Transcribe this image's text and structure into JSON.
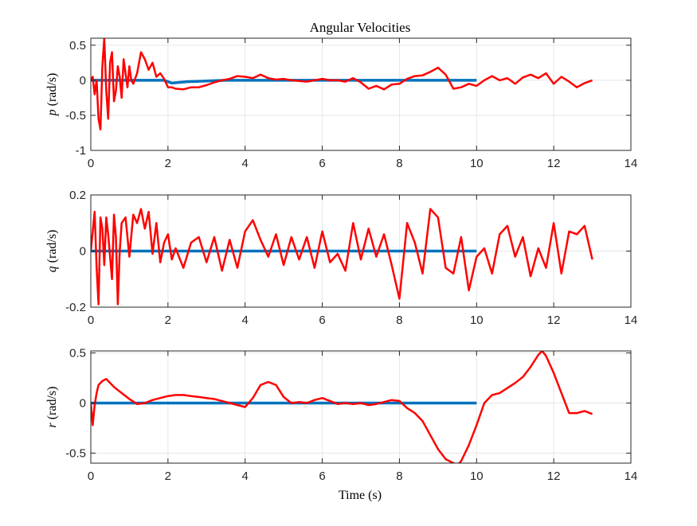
{
  "figure": {
    "title": "Angular Velocities",
    "xlabel": "Time (s)"
  },
  "colors": {
    "reference": "#0072BD",
    "measured": "#FF0000",
    "grid": "#E6E6E6",
    "axes": "#262626"
  },
  "chart_data": [
    {
      "type": "line",
      "ylabel": "p (rad/s)",
      "ylabel_symbol": "p",
      "ylabel_unit": "(rad/s)",
      "xlim": [
        0,
        14
      ],
      "ylim": [
        -1,
        0.6
      ],
      "xticks": [
        "0",
        "2",
        "4",
        "6",
        "8",
        "10",
        "12",
        "14"
      ],
      "yticks": [
        "-1",
        "-0.5",
        "0",
        "0.5"
      ],
      "ytick_values": [
        -1,
        -0.5,
        0,
        0.5
      ],
      "grid": true,
      "series": [
        {
          "role": "reference",
          "x": [
            0,
            1.0,
            1.9,
            2.1,
            2.5,
            3.0,
            3.5,
            4.0,
            10.0
          ],
          "y": [
            0,
            0,
            0,
            -0.04,
            -0.02,
            -0.01,
            0.0,
            0.0,
            0.0
          ]
        },
        {
          "role": "measured",
          "x": [
            0,
            0.05,
            0.1,
            0.15,
            0.2,
            0.25,
            0.3,
            0.35,
            0.4,
            0.45,
            0.5,
            0.55,
            0.6,
            0.65,
            0.7,
            0.75,
            0.8,
            0.85,
            0.9,
            0.95,
            1.0,
            1.05,
            1.1,
            1.2,
            1.3,
            1.4,
            1.5,
            1.6,
            1.7,
            1.8,
            1.9,
            2.0,
            2.1,
            2.2,
            2.4,
            2.6,
            2.8,
            3.0,
            3.2,
            3.4,
            3.6,
            3.8,
            4.0,
            4.2,
            4.4,
            4.6,
            4.8,
            5.0,
            5.2,
            5.4,
            5.6,
            5.8,
            6.0,
            6.2,
            6.4,
            6.6,
            6.8,
            7.0,
            7.2,
            7.4,
            7.6,
            7.8,
            8.0,
            8.2,
            8.4,
            8.6,
            8.8,
            9.0,
            9.2,
            9.4,
            9.6,
            9.8,
            10.0,
            10.2,
            10.4,
            10.6,
            10.8,
            11.0,
            11.2,
            11.4,
            11.6,
            11.8,
            12.0,
            12.2,
            12.4,
            12.6,
            12.8,
            13.0
          ],
          "y": [
            0,
            0.05,
            -0.2,
            0.0,
            -0.55,
            -0.7,
            0.2,
            0.6,
            -0.15,
            -0.55,
            0.25,
            0.4,
            -0.3,
            -0.15,
            0.2,
            0.05,
            -0.25,
            0.3,
            0.1,
            -0.1,
            0.2,
            0.0,
            -0.05,
            0.1,
            0.4,
            0.3,
            0.15,
            0.25,
            0.05,
            0.1,
            0.02,
            -0.1,
            -0.1,
            -0.12,
            -0.13,
            -0.1,
            -0.1,
            -0.07,
            -0.03,
            0.0,
            0.02,
            0.06,
            0.05,
            0.03,
            0.08,
            0.03,
            0.01,
            0.02,
            0.0,
            -0.01,
            -0.02,
            0.0,
            0.02,
            0.0,
            0.0,
            -0.02,
            0.03,
            -0.03,
            -0.12,
            -0.08,
            -0.13,
            -0.06,
            -0.05,
            0.02,
            0.06,
            0.07,
            0.12,
            0.18,
            0.08,
            -0.12,
            -0.1,
            -0.05,
            -0.08,
            0.0,
            0.06,
            0.0,
            0.03,
            -0.05,
            0.04,
            0.08,
            0.03,
            0.1,
            -0.05,
            0.05,
            -0.02,
            -0.1,
            -0.04,
            0.0
          ]
        }
      ]
    },
    {
      "type": "line",
      "ylabel": "q (rad/s)",
      "ylabel_symbol": "q",
      "ylabel_unit": "(rad/s)",
      "xlim": [
        0,
        14
      ],
      "ylim": [
        -0.2,
        0.2
      ],
      "xticks": [
        "0",
        "2",
        "4",
        "6",
        "8",
        "10",
        "12",
        "14"
      ],
      "yticks": [
        "-0.2",
        "0",
        "0.2"
      ],
      "ytick_values": [
        -0.2,
        0,
        0.2
      ],
      "grid": true,
      "series": [
        {
          "role": "reference",
          "x": [
            0,
            10.0
          ],
          "y": [
            0,
            0
          ]
        },
        {
          "role": "measured",
          "x": [
            0,
            0.1,
            0.15,
            0.2,
            0.25,
            0.3,
            0.35,
            0.4,
            0.45,
            0.5,
            0.55,
            0.6,
            0.65,
            0.7,
            0.75,
            0.8,
            0.9,
            1.0,
            1.1,
            1.2,
            1.3,
            1.4,
            1.5,
            1.6,
            1.7,
            1.8,
            1.9,
            2.0,
            2.1,
            2.2,
            2.4,
            2.6,
            2.8,
            3.0,
            3.2,
            3.4,
            3.6,
            3.8,
            4.0,
            4.2,
            4.4,
            4.6,
            4.8,
            5.0,
            5.2,
            5.4,
            5.6,
            5.8,
            6.0,
            6.2,
            6.4,
            6.6,
            6.8,
            7.0,
            7.2,
            7.4,
            7.6,
            7.8,
            8.0,
            8.2,
            8.4,
            8.6,
            8.8,
            9.0,
            9.2,
            9.4,
            9.6,
            9.8,
            10.0,
            10.2,
            10.4,
            10.6,
            10.8,
            11.0,
            11.2,
            11.4,
            11.6,
            11.8,
            12.0,
            12.2,
            12.4,
            12.6,
            12.8,
            13.0
          ],
          "y": [
            0.0,
            0.14,
            -0.06,
            -0.19,
            0.12,
            0.08,
            -0.05,
            0.12,
            0.06,
            -0.02,
            -0.1,
            0.13,
            0.05,
            -0.19,
            0.0,
            0.1,
            0.12,
            -0.02,
            0.13,
            0.1,
            0.15,
            0.08,
            0.14,
            -0.01,
            0.1,
            -0.04,
            0.03,
            0.06,
            -0.03,
            0.01,
            -0.06,
            0.03,
            0.05,
            -0.04,
            0.05,
            -0.07,
            0.04,
            -0.06,
            0.07,
            0.11,
            0.04,
            -0.02,
            0.06,
            -0.05,
            0.05,
            -0.03,
            0.05,
            -0.06,
            0.07,
            -0.04,
            -0.01,
            -0.07,
            0.1,
            -0.03,
            0.08,
            -0.02,
            0.06,
            -0.05,
            -0.17,
            0.1,
            0.03,
            -0.08,
            0.15,
            0.12,
            -0.06,
            -0.08,
            0.05,
            -0.14,
            -0.02,
            0.01,
            -0.08,
            0.06,
            0.09,
            -0.02,
            0.05,
            -0.09,
            0.01,
            -0.06,
            0.1,
            -0.08,
            0.07,
            0.06,
            0.09,
            -0.03
          ]
        }
      ]
    },
    {
      "type": "line",
      "ylabel": "r (rad/s)",
      "ylabel_symbol": "r",
      "ylabel_unit": "(rad/s)",
      "xlabel": "Time (s)",
      "xlim": [
        0,
        14
      ],
      "ylim": [
        -0.6,
        0.52
      ],
      "xticks": [
        "0",
        "2",
        "4",
        "6",
        "8",
        "10",
        "12",
        "14"
      ],
      "yticks": [
        "-0.5",
        "0",
        "0.5"
      ],
      "ytick_values": [
        -0.5,
        0,
        0.5
      ],
      "grid": true,
      "series": [
        {
          "role": "reference",
          "x": [
            0,
            10.0
          ],
          "y": [
            0,
            0
          ]
        },
        {
          "role": "measured",
          "x": [
            0,
            0.05,
            0.1,
            0.15,
            0.2,
            0.3,
            0.4,
            0.5,
            0.6,
            0.8,
            1.0,
            1.2,
            1.4,
            1.6,
            1.8,
            2.0,
            2.2,
            2.4,
            2.6,
            2.8,
            3.0,
            3.2,
            3.4,
            3.6,
            3.8,
            4.0,
            4.2,
            4.4,
            4.6,
            4.8,
            5.0,
            5.2,
            5.4,
            5.6,
            5.8,
            6.0,
            6.2,
            6.4,
            6.6,
            6.8,
            7.0,
            7.2,
            7.4,
            7.6,
            7.8,
            8.0,
            8.2,
            8.4,
            8.6,
            8.8,
            9.0,
            9.2,
            9.4,
            9.5,
            9.6,
            9.8,
            10.0,
            10.2,
            10.4,
            10.6,
            10.8,
            11.0,
            11.2,
            11.4,
            11.6,
            11.7,
            11.8,
            12.0,
            12.2,
            12.4,
            12.6,
            12.8,
            13.0
          ],
          "y": [
            0,
            -0.22,
            -0.02,
            0.1,
            0.18,
            0.22,
            0.24,
            0.2,
            0.16,
            0.1,
            0.04,
            -0.01,
            0.0,
            0.03,
            0.05,
            0.07,
            0.08,
            0.08,
            0.07,
            0.06,
            0.05,
            0.04,
            0.02,
            0.0,
            -0.02,
            -0.04,
            0.05,
            0.18,
            0.21,
            0.18,
            0.06,
            0.0,
            0.01,
            0.0,
            0.03,
            0.05,
            0.02,
            -0.01,
            0.0,
            -0.01,
            0.0,
            -0.02,
            -0.01,
            0.01,
            0.03,
            0.02,
            -0.05,
            -0.1,
            -0.18,
            -0.32,
            -0.46,
            -0.56,
            -0.6,
            -0.62,
            -0.58,
            -0.42,
            -0.22,
            0.0,
            0.08,
            0.1,
            0.15,
            0.2,
            0.26,
            0.36,
            0.48,
            0.52,
            0.47,
            0.3,
            0.1,
            -0.1,
            -0.1,
            -0.08,
            -0.11
          ]
        }
      ]
    }
  ]
}
